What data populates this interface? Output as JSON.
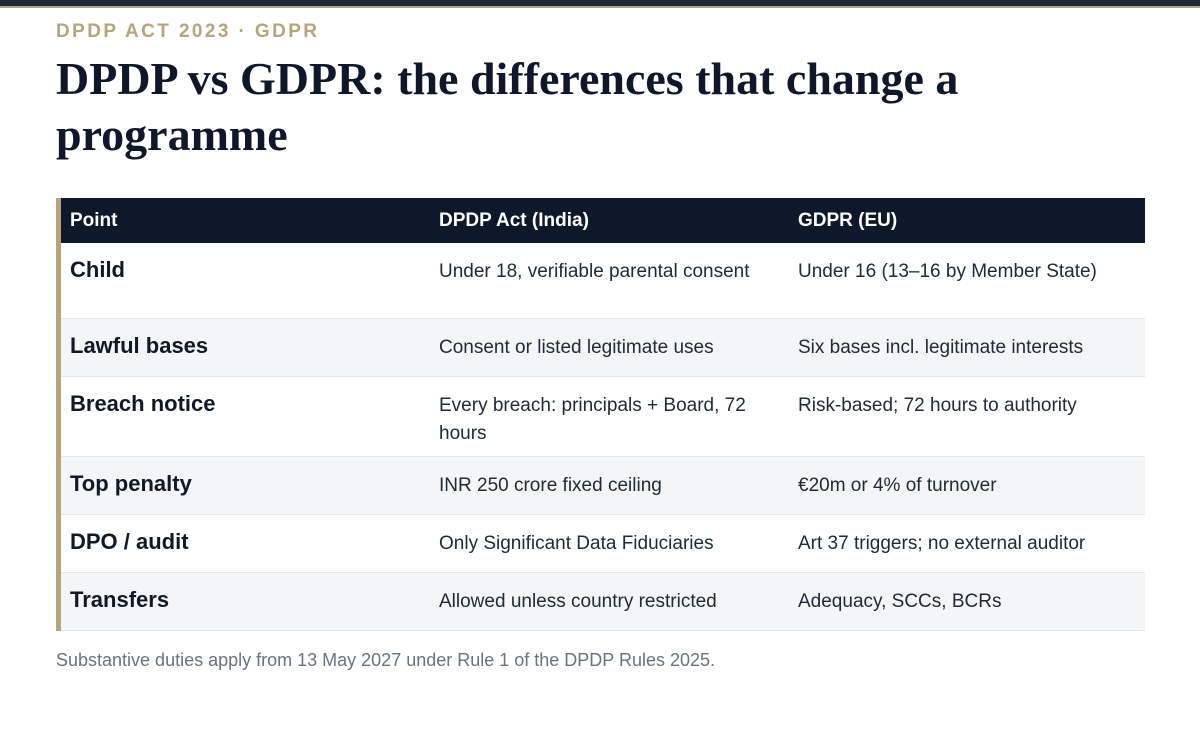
{
  "header": {
    "kicker": "DPDP ACT 2023 · GDPR",
    "title": "DPDP vs GDPR: the differences that change a programme"
  },
  "table": {
    "columns": [
      "Point",
      "DPDP Act (India)",
      "GDPR (EU)"
    ],
    "rows": [
      {
        "point": "Child",
        "dpdp": "Under 18, verifiable parental consent",
        "gdpr": "Under 16 (13–16 by Member State)"
      },
      {
        "point": "Lawful bases",
        "dpdp": "Consent or listed legitimate uses",
        "gdpr": "Six bases incl. legitimate interests"
      },
      {
        "point": "Breach notice",
        "dpdp": "Every breach: principals + Board, 72 hours",
        "gdpr": "Risk-based; 72 hours to authority"
      },
      {
        "point": "Top penalty",
        "dpdp": "INR 250 crore fixed ceiling",
        "gdpr": "€20m or 4% of turnover"
      },
      {
        "point": "DPO / audit",
        "dpdp": "Only Significant Data Fiduciaries",
        "gdpr": "Art 37 triggers; no external auditor"
      },
      {
        "point": "Transfers",
        "dpdp": "Allowed unless country restricted",
        "gdpr": "Adequacy, SCCs, BCRs"
      }
    ]
  },
  "footnote": "Substantive duties apply from 13 May 2027 under Rule 1 of the DPDP Rules 2025.",
  "colors": {
    "accent": "#b5a47c",
    "header_bg": "#0f172a",
    "alt_row_bg": "#f3f5f7"
  }
}
